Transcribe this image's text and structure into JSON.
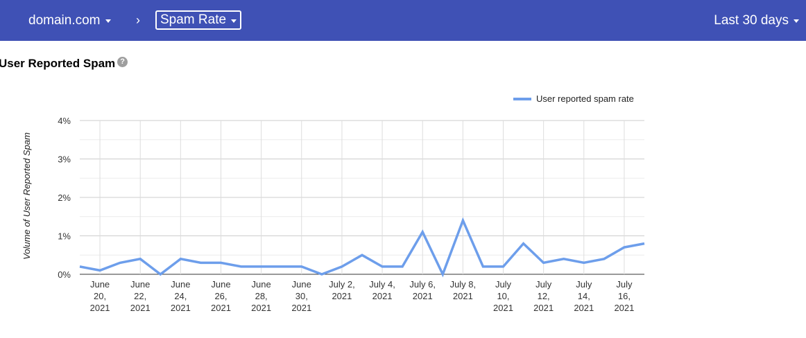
{
  "header": {
    "domain_label": "domain.com",
    "separator": "›",
    "metric_label": "Spam Rate",
    "range_label": "Last 30 days",
    "bg_color": "#3f51b5"
  },
  "page": {
    "title": "User Reported Spam",
    "help_icon": "help-circle-icon",
    "help_glyph": "?"
  },
  "chart_data": {
    "type": "line",
    "title": "",
    "xlabel": "",
    "ylabel": "Volume of User Reported Spam",
    "x": [
      "2021-06-19",
      "2021-06-20",
      "2021-06-21",
      "2021-06-22",
      "2021-06-23",
      "2021-06-24",
      "2021-06-25",
      "2021-06-26",
      "2021-06-27",
      "2021-06-28",
      "2021-06-29",
      "2021-06-30",
      "2021-07-01",
      "2021-07-02",
      "2021-07-03",
      "2021-07-04",
      "2021-07-05",
      "2021-07-06",
      "2021-07-07",
      "2021-07-08",
      "2021-07-09",
      "2021-07-10",
      "2021-07-11",
      "2021-07-12",
      "2021-07-13",
      "2021-07-14",
      "2021-07-15",
      "2021-07-16",
      "2021-07-17"
    ],
    "series": [
      {
        "name": "User reported spam rate",
        "color": "#6d9eeb",
        "values": [
          0.2,
          0.1,
          0.3,
          0.4,
          0.0,
          0.4,
          0.3,
          0.3,
          0.2,
          0.2,
          0.2,
          0.2,
          0.0,
          0.2,
          0.5,
          0.2,
          0.2,
          1.1,
          0.0,
          1.4,
          0.2,
          0.2,
          0.8,
          0.3,
          0.4,
          0.3,
          0.4,
          0.7,
          0.8
        ]
      }
    ],
    "ylim": [
      0,
      4
    ],
    "y_ticks": [
      "0%",
      "1%",
      "2%",
      "3%",
      "4%"
    ],
    "x_tick_labels": [
      [
        "June",
        "20,",
        "2021"
      ],
      [
        "June",
        "22,",
        "2021"
      ],
      [
        "June",
        "24,",
        "2021"
      ],
      [
        "June",
        "26,",
        "2021"
      ],
      [
        "June",
        "28,",
        "2021"
      ],
      [
        "June",
        "30,",
        "2021"
      ],
      [
        "July 2,",
        "2021"
      ],
      [
        "July 4,",
        "2021"
      ],
      [
        "July 6,",
        "2021"
      ],
      [
        "July 8,",
        "2021"
      ],
      [
        "July",
        "10,",
        "2021"
      ],
      [
        "July",
        "12,",
        "2021"
      ],
      [
        "July",
        "14,",
        "2021"
      ],
      [
        "July",
        "16,",
        "2021"
      ]
    ],
    "grid": true,
    "legend_position": "top-right"
  }
}
